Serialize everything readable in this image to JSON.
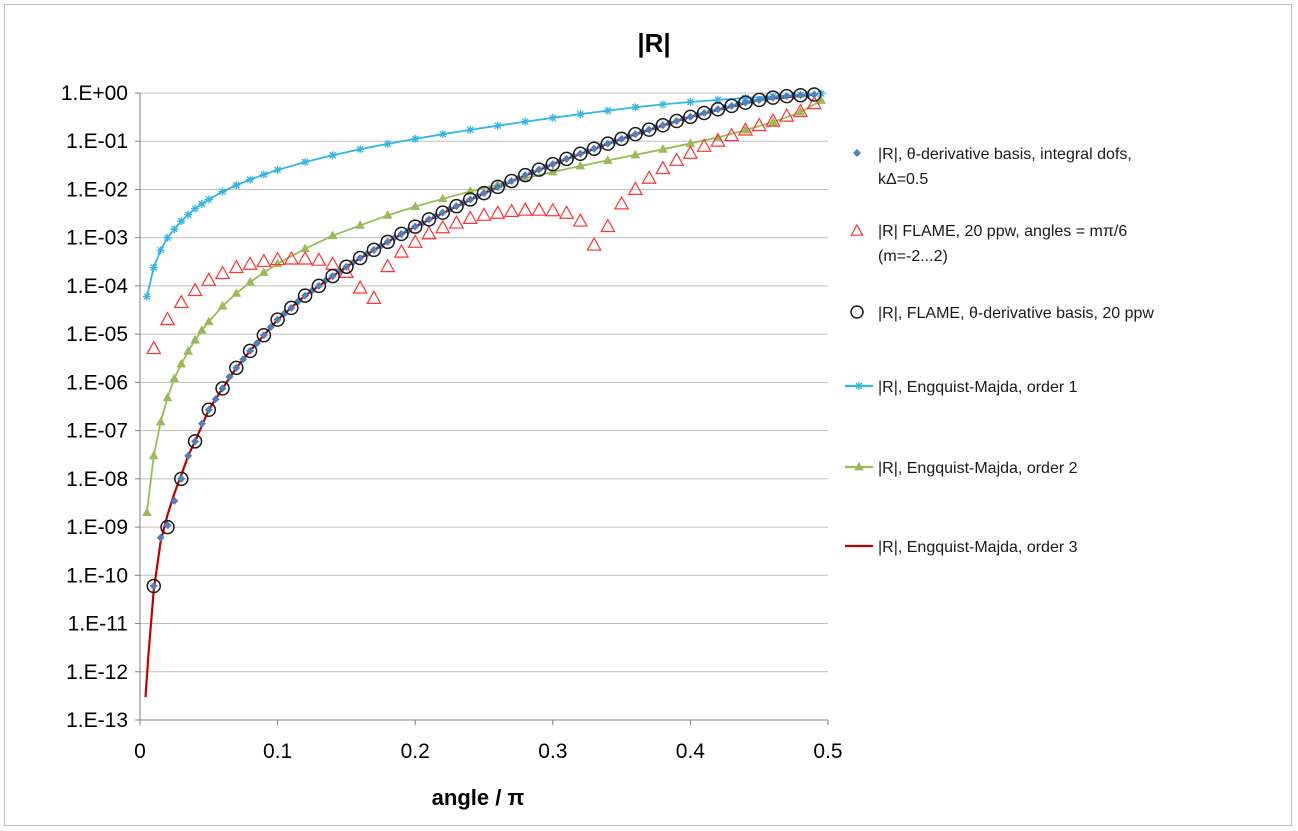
{
  "chart_data": {
    "type": "scatter",
    "title": "|R|",
    "xlabel": "angle / π",
    "ylabel": "",
    "xlim": [
      0,
      0.5
    ],
    "ylim": [
      1e-13,
      1
    ],
    "yscale": "log",
    "grid": "horizontal",
    "legend_position": "right",
    "x_ticks": [
      "0",
      "0.1",
      "0.2",
      "0.3",
      "0.4",
      "0.5"
    ],
    "y_ticks": [
      "1.E+00",
      "1.E-01",
      "1.E-02",
      "1.E-03",
      "1.E-04",
      "1.E-05",
      "1.E-06",
      "1.E-07",
      "1.E-08",
      "1.E-09",
      "1.E-10",
      "1.E-11",
      "1.E-12",
      "1.E-13"
    ],
    "series": [
      {
        "name": "|R|, θ-derivative basis, integral dofs, kΔ=0.5",
        "legend_lines": [
          "|R|, θ-derivative basis, integral dofs,",
          "kΔ=0.5"
        ],
        "style": "diamond",
        "color": "#4f81bd",
        "x": [
          0.01,
          0.015,
          0.02,
          0.025,
          0.03,
          0.035,
          0.04,
          0.045,
          0.05,
          0.055,
          0.06,
          0.065,
          0.07,
          0.075,
          0.08,
          0.085,
          0.09,
          0.095,
          0.1,
          0.105,
          0.11,
          0.115,
          0.12,
          0.125,
          0.13,
          0.135,
          0.14,
          0.145,
          0.15,
          0.155,
          0.16,
          0.165,
          0.17,
          0.175,
          0.18,
          0.185,
          0.19,
          0.195,
          0.2,
          0.205,
          0.21,
          0.215,
          0.22,
          0.225,
          0.23,
          0.235,
          0.24,
          0.245,
          0.25,
          0.255,
          0.26,
          0.265,
          0.27,
          0.275,
          0.28,
          0.285,
          0.29,
          0.295,
          0.3,
          0.305,
          0.31,
          0.315,
          0.32,
          0.325,
          0.33,
          0.335,
          0.34,
          0.345,
          0.35,
          0.355,
          0.36,
          0.365,
          0.37,
          0.375,
          0.38,
          0.385,
          0.39,
          0.395,
          0.4,
          0.405,
          0.41,
          0.415,
          0.42,
          0.425,
          0.43,
          0.435,
          0.44,
          0.445,
          0.45,
          0.455,
          0.46,
          0.465,
          0.47,
          0.475,
          0.48,
          0.485,
          0.49
        ],
        "y": [
          6e-11,
          6e-10,
          1.1e-09,
          3.5e-09,
          1e-08,
          3e-08,
          6e-08,
          1.4e-07,
          2.7e-07,
          4.5e-07,
          7.5e-07,
          1.3e-06,
          2e-06,
          3e-06,
          4.5e-06,
          6.5e-06,
          9.5e-06,
          1.4e-05,
          2e-05,
          2.7e-05,
          3.5e-05,
          4.8e-05,
          6.3e-05,
          8e-05,
          0.0001,
          0.00013,
          0.00016,
          0.0002,
          0.00025,
          0.00031,
          0.00038,
          0.00046,
          0.00056,
          0.00068,
          0.00082,
          0.001,
          0.0012,
          0.0014,
          0.0017,
          0.002,
          0.0024,
          0.0028,
          0.0033,
          0.0039,
          0.0045,
          0.0053,
          0.0062,
          0.0072,
          0.0084,
          0.0098,
          0.0113,
          0.0131,
          0.015,
          0.0172,
          0.0198,
          0.0226,
          0.0258,
          0.0294,
          0.0335,
          0.038,
          0.043,
          0.049,
          0.055,
          0.062,
          0.07,
          0.079,
          0.089,
          0.1,
          0.112,
          0.125,
          0.14,
          0.156,
          0.174,
          0.193,
          0.214,
          0.237,
          0.262,
          0.29,
          0.32,
          0.35,
          0.385,
          0.42,
          0.46,
          0.5,
          0.54,
          0.59,
          0.63,
          0.68,
          0.72,
          0.76,
          0.8,
          0.83,
          0.86,
          0.88,
          0.9,
          0.92,
          0.93
        ]
      },
      {
        "name": "|R| FLAME,  20 ppw, angles = mπ/6 (m=-2...2)",
        "legend_lines": [
          "|R| FLAME,  20 ppw, angles = mπ/6",
          "(m=-2...2)"
        ],
        "style": "triangle-open",
        "color": "#ff3333",
        "x": [
          0.01,
          0.02,
          0.03,
          0.04,
          0.05,
          0.06,
          0.07,
          0.08,
          0.09,
          0.1,
          0.11,
          0.12,
          0.13,
          0.14,
          0.15,
          0.16,
          0.17,
          0.18,
          0.19,
          0.2,
          0.21,
          0.22,
          0.23,
          0.24,
          0.25,
          0.26,
          0.27,
          0.28,
          0.29,
          0.3,
          0.31,
          0.32,
          0.33,
          0.34,
          0.35,
          0.36,
          0.37,
          0.38,
          0.39,
          0.4,
          0.41,
          0.42,
          0.43,
          0.44,
          0.45,
          0.46,
          0.47,
          0.48,
          0.49
        ],
        "y": [
          5e-06,
          2e-05,
          4.5e-05,
          8e-05,
          0.00013,
          0.00018,
          0.00024,
          0.00028,
          0.00032,
          0.00035,
          0.00036,
          0.00036,
          0.00034,
          0.00028,
          0.00019,
          9e-05,
          5.5e-05,
          0.00025,
          0.0005,
          0.0008,
          0.0012,
          0.0016,
          0.002,
          0.0025,
          0.0029,
          0.0032,
          0.0035,
          0.0037,
          0.0037,
          0.0036,
          0.0032,
          0.0022,
          0.0007,
          0.0017,
          0.005,
          0.01,
          0.017,
          0.027,
          0.04,
          0.056,
          0.078,
          0.1,
          0.13,
          0.17,
          0.21,
          0.26,
          0.33,
          0.41,
          0.6
        ]
      },
      {
        "name": "|R|, FLAME, θ-derivative basis, 20 ppw",
        "legend_lines": [
          "|R|, FLAME, θ-derivative basis, 20 ppw"
        ],
        "style": "circle-open",
        "color": "#1a1a1a",
        "x": [
          0.01,
          0.02,
          0.03,
          0.04,
          0.05,
          0.06,
          0.07,
          0.08,
          0.09,
          0.1,
          0.11,
          0.12,
          0.13,
          0.14,
          0.15,
          0.16,
          0.17,
          0.18,
          0.19,
          0.2,
          0.21,
          0.22,
          0.23,
          0.24,
          0.25,
          0.26,
          0.27,
          0.28,
          0.29,
          0.3,
          0.31,
          0.32,
          0.33,
          0.34,
          0.35,
          0.36,
          0.37,
          0.38,
          0.39,
          0.4,
          0.41,
          0.42,
          0.43,
          0.44,
          0.45,
          0.46,
          0.47,
          0.48,
          0.49
        ],
        "y": [
          6e-11,
          1e-09,
          1e-08,
          6e-08,
          2.7e-07,
          7.5e-07,
          2e-06,
          4.5e-06,
          9.5e-06,
          2e-05,
          3.5e-05,
          6.3e-05,
          0.0001,
          0.00016,
          0.00025,
          0.00038,
          0.00056,
          0.00082,
          0.0012,
          0.0017,
          0.0024,
          0.0033,
          0.0045,
          0.0062,
          0.0084,
          0.0113,
          0.015,
          0.0198,
          0.0258,
          0.0335,
          0.043,
          0.055,
          0.07,
          0.089,
          0.112,
          0.14,
          0.174,
          0.214,
          0.262,
          0.32,
          0.385,
          0.46,
          0.54,
          0.63,
          0.72,
          0.8,
          0.86,
          0.9,
          0.93
        ]
      },
      {
        "name": "|R|, Engquist-Majda, order 1",
        "legend_lines": [
          "|R|, Engquist-Majda, order 1"
        ],
        "style": "line-star",
        "color": "#33b5e5",
        "x": [
          0.005,
          0.01,
          0.015,
          0.02,
          0.025,
          0.03,
          0.035,
          0.04,
          0.045,
          0.05,
          0.06,
          0.07,
          0.08,
          0.09,
          0.1,
          0.12,
          0.14,
          0.16,
          0.18,
          0.2,
          0.22,
          0.24,
          0.26,
          0.28,
          0.3,
          0.32,
          0.34,
          0.36,
          0.38,
          0.4,
          0.42,
          0.44,
          0.46,
          0.48,
          0.495
        ],
        "y": [
          6e-05,
          0.00024,
          0.00055,
          0.001,
          0.0015,
          0.0022,
          0.003,
          0.004,
          0.005,
          0.0062,
          0.009,
          0.0123,
          0.016,
          0.0204,
          0.0254,
          0.0371,
          0.0512,
          0.0681,
          0.0882,
          0.112,
          0.14,
          0.172,
          0.21,
          0.254,
          0.306,
          0.364,
          0.432,
          0.506,
          0.58,
          0.65,
          0.72,
          0.79,
          0.85,
          0.92,
          0.97
        ]
      },
      {
        "name": "|R|, Engquist-Majda, order 2",
        "legend_lines": [
          "|R|, Engquist-Majda, order 2"
        ],
        "style": "line-triangle",
        "color": "#9bbb59",
        "x": [
          0.005,
          0.01,
          0.015,
          0.02,
          0.025,
          0.03,
          0.035,
          0.04,
          0.045,
          0.05,
          0.06,
          0.07,
          0.08,
          0.09,
          0.1,
          0.12,
          0.14,
          0.16,
          0.18,
          0.2,
          0.22,
          0.24,
          0.26,
          0.28,
          0.3,
          0.32,
          0.34,
          0.36,
          0.38,
          0.4,
          0.42,
          0.44,
          0.46,
          0.48,
          0.495
        ],
        "y": [
          2e-09,
          3e-08,
          1.5e-07,
          4.8e-07,
          1.2e-06,
          2.4e-06,
          4.4e-06,
          7.5e-06,
          1.2e-05,
          1.8e-05,
          3.8e-05,
          7e-05,
          0.00012,
          0.00019,
          0.00029,
          0.00059,
          0.0011,
          0.0018,
          0.0029,
          0.0044,
          0.0064,
          0.0091,
          0.0126,
          0.0171,
          0.023,
          0.0306,
          0.04,
          0.052,
          0.068,
          0.09,
          0.12,
          0.17,
          0.25,
          0.4,
          0.7
        ]
      },
      {
        "name": "|R|, Engquist-Majda, order 3",
        "legend_lines": [
          "|R|, Engquist-Majda, order 3"
        ],
        "style": "line",
        "color": "#c00000",
        "x": [
          0.004,
          0.006,
          0.008,
          0.01,
          0.015,
          0.02,
          0.025,
          0.03,
          0.035,
          0.04,
          0.05,
          0.06,
          0.07,
          0.08,
          0.1,
          0.12,
          0.15,
          0.18,
          0.2,
          0.25,
          0.3,
          0.35,
          0.4,
          0.45,
          0.49
        ],
        "y": [
          3e-13,
          2e-12,
          1e-11,
          5e-11,
          5e-10,
          1.8e-09,
          5e-09,
          1.2e-08,
          3e-08,
          6e-08,
          2.7e-07,
          7.5e-07,
          2e-06,
          4.5e-06,
          2e-05,
          6.3e-05,
          0.00025,
          0.00082,
          0.0017,
          0.0084,
          0.0335,
          0.112,
          0.32,
          0.72,
          0.93
        ]
      }
    ]
  }
}
